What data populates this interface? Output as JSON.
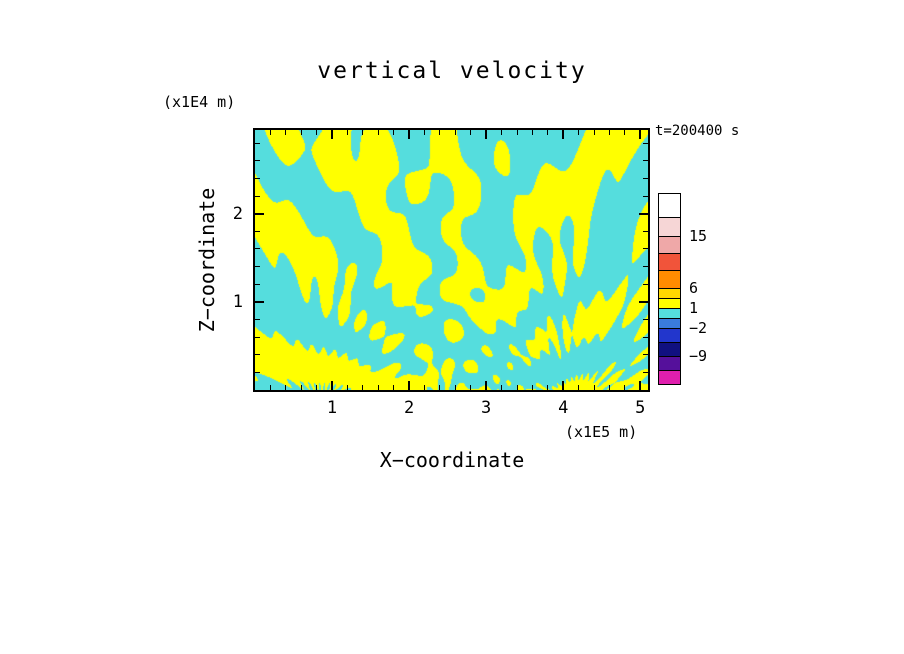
{
  "title": "vertical velocity",
  "timestamp": "t=200400 s",
  "x_axis": {
    "label": "X−coordinate",
    "unit": "(x1E5 m)",
    "min": 0,
    "max": 5.1,
    "major_ticks": [
      1,
      2,
      3,
      4,
      5
    ],
    "minor_step": 0.2
  },
  "y_axis": {
    "label": "Z−coordinate",
    "unit": "(x1E4 m)",
    "min": 0,
    "max": 2.95,
    "major_ticks": [
      1,
      2
    ],
    "minor_step": 0.2
  },
  "colorbar": {
    "segments": [
      {
        "color": "#ffffff",
        "h": 24
      },
      {
        "color": "#f6d6d6",
        "h": 19
      },
      {
        "color": "#efa8a8",
        "h": 17,
        "label": "15"
      },
      {
        "color": "#f1543a",
        "h": 17
      },
      {
        "color": "#ff8c00",
        "h": 18
      },
      {
        "color": "#ffd700",
        "h": 10,
        "label": "6"
      },
      {
        "color": "#ffff00",
        "h": 10
      },
      {
        "color": "#55dddd",
        "h": 10,
        "label": "1"
      },
      {
        "color": "#3a7bdc",
        "h": 10
      },
      {
        "color": "#2236cc",
        "h": 14,
        "label": "−2"
      },
      {
        "color": "#101080",
        "h": 14
      },
      {
        "color": "#55109b",
        "h": 14,
        "label": "−9"
      },
      {
        "color": "#e01fae",
        "h": 13
      }
    ]
  },
  "chart_data": {
    "type": "heatmap",
    "title": "vertical velocity",
    "xlabel": "X−coordinate",
    "ylabel": "Z−coordinate",
    "x_unit": "(x1E5 m)",
    "y_unit": "(x1E4 m)",
    "time_annotation": "t=200400 s",
    "x_range": [
      0,
      5.1
    ],
    "z_range": [
      0,
      2.95
    ],
    "contour_levels": [
      -9,
      -2,
      1,
      6,
      15
    ],
    "field_description": "Two-tone filled contour field of vertical velocity: yellow bands (w above ~1) and cyan bands (w below ~1) forming interfering fan-shaped internal-wave beams radiating upward from sources near the lower boundary; fine fans near x=0.9 and x=4.15, broader chevrons near the centre, diagonal banding in the upper right.",
    "field_colors": {
      "positive": "#ffff00",
      "negative": "#55dddd"
    },
    "pattern": {
      "threshold": 0.2,
      "plane": {
        "amp": 0.7,
        "kz": 5.0,
        "kx": 0.8
      },
      "sources": [
        {
          "cx": 0.85,
          "e": 0.22,
          "m": 30,
          "w": 1.0
        },
        {
          "cx": 1.6,
          "e": 0.45,
          "m": 10,
          "w": 0.6
        },
        {
          "cx": 2.45,
          "e": 0.3,
          "m": 14,
          "w": 1.0
        },
        {
          "cx": 3.25,
          "e": 0.35,
          "m": 18,
          "w": 0.8
        },
        {
          "cx": 4.15,
          "e": 0.2,
          "m": 34,
          "w": 1.0
        },
        {
          "cx": 4.9,
          "e": 0.45,
          "m": 12,
          "w": 0.5
        }
      ]
    }
  }
}
